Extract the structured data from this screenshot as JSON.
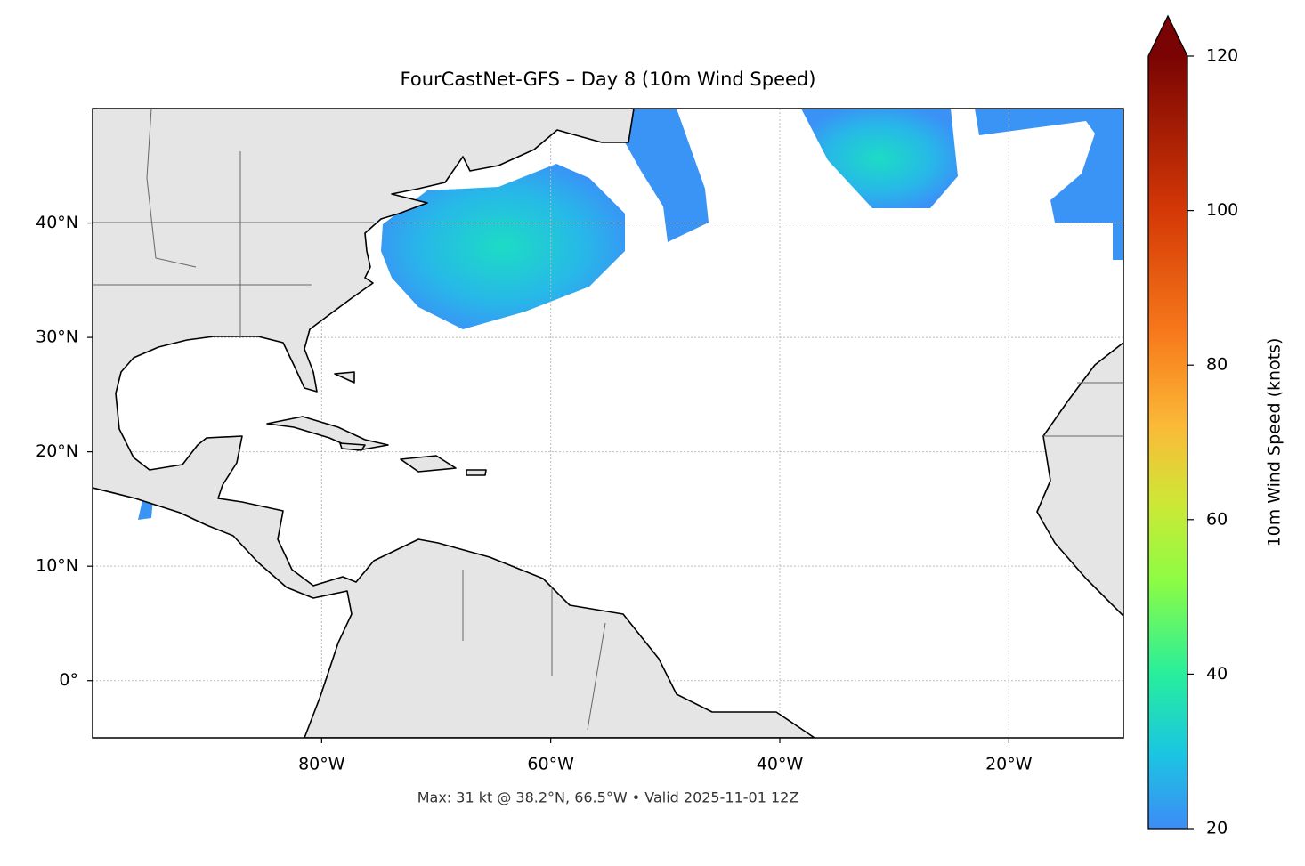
{
  "chart_data": {
    "type": "map",
    "title": "FourCastNet-GFS – Day 8 (10m Wind Speed)",
    "caption": "Max: 31 kt @ 38.2°N, 66.5°W • Valid 2025-11-01 12Z",
    "xlim": [
      -100,
      -10
    ],
    "ylim": [
      -5,
      50
    ],
    "xticks": [
      {
        "value": -80,
        "label": "80°W"
      },
      {
        "value": -60,
        "label": "60°W"
      },
      {
        "value": -40,
        "label": "40°W"
      },
      {
        "value": -20,
        "label": "20°W"
      }
    ],
    "yticks": [
      {
        "value": 0,
        "label": "0°"
      },
      {
        "value": 10,
        "label": "10°N"
      },
      {
        "value": 20,
        "label": "20°N"
      },
      {
        "value": 30,
        "label": "30°N"
      },
      {
        "value": 40,
        "label": "40°N"
      }
    ],
    "grid": true,
    "colorbar": {
      "label": "10m Wind Speed (knots)",
      "lim": [
        20,
        120
      ],
      "ticks": [
        20,
        40,
        60,
        80,
        100,
        120
      ]
    }
  }
}
